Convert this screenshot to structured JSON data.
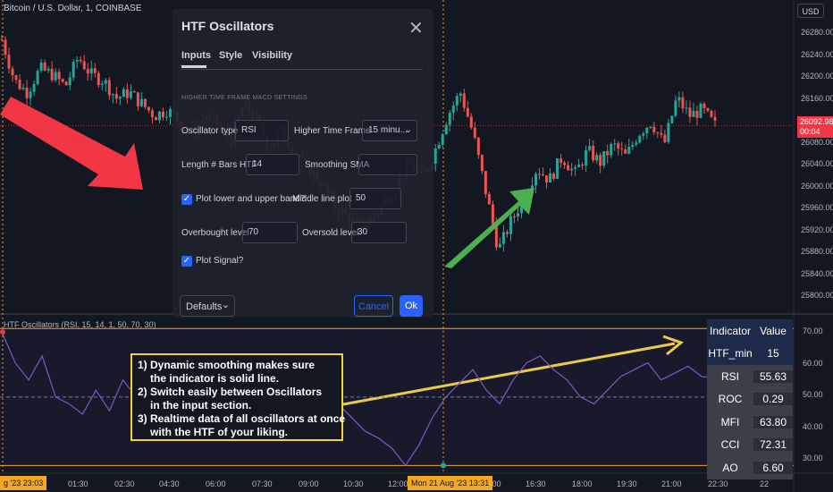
{
  "symbol_title": "Bitcoin / U.S. Dollar, 1, COINBASE",
  "currency_badge": "USD",
  "price_axis": [
    "26280.00",
    "26240.00",
    "26200.00",
    "26160.00",
    "26120.00",
    "26080.00",
    "26040.00",
    "26000.00",
    "25960.00",
    "25920.00",
    "25880.00",
    "25840.00",
    "25800.00"
  ],
  "last_price": {
    "value": "26092.98",
    "countdown": "00:04"
  },
  "osc_axis": [
    "70.00",
    "60.00",
    "50.00",
    "40.00",
    "30.00"
  ],
  "osc_title": "HTF Oscillators (RSI, 15, 14, 1, 50, 70, 30)",
  "time_axis": [
    "01:30",
    "02:30",
    "04:30",
    "06:00",
    "07:30",
    "09:00",
    "10:30",
    "12:00",
    "15:00",
    "16:30",
    "18:00",
    "19:30",
    "21:00",
    "22:30",
    "22"
  ],
  "time_highlight_left": "g '23  23:03",
  "time_highlight_center": "Mon 21 Aug '23  13:31",
  "colors": {
    "up": "#26a69a",
    "down": "#ef5350",
    "accent": "#2962ff",
    "osc_line": "#7e57c2",
    "level_line": "#f5a623",
    "arrow_red": "#f23645",
    "arrow_green": "#4caf50",
    "arrow_yellow": "#f5d142"
  },
  "dialog": {
    "title": "HTF Oscillators",
    "tabs": [
      "Inputs",
      "Style",
      "Visibility"
    ],
    "section": "HIGHER TIME FRAME MACD SETTINGS",
    "oscillator_type_label": "Oscillator type",
    "oscillator_type_value": "RSI",
    "higher_tf_label": "Higher Time Frame",
    "higher_tf_value": "15 minu...",
    "length_label": "Length # Bars HTF",
    "length_value": "14",
    "smoothing_label": "Smoothing SMA",
    "plot_band_label": "Plot lower and upper band?",
    "middle_line_label": "Middle line plot",
    "middle_line_value": "50",
    "overbought_label": "Overbought level",
    "overbought_value": "70",
    "oversold_label": "Oversold level",
    "oversold_value": "30",
    "plot_signal_label": "Plot Signal?",
    "defaults_label": "Defaults",
    "cancel_label": "Cancel",
    "ok_label": "Ok"
  },
  "note": {
    "line1": "1) Dynamic smoothing makes sure",
    "line2": "the indicator is solid line.",
    "line3": "2) Switch easily between Oscillators",
    "line4": "in the input section.",
    "line5": "3) Realtime data of all oscillators at once",
    "line6": "with the HTF of your liking."
  },
  "table": {
    "header": [
      "Indicator",
      "Value"
    ],
    "rows": [
      {
        "name": "HTF_min",
        "value": "15"
      },
      {
        "name": "RSI",
        "value": "55.63"
      },
      {
        "name": "ROC",
        "value": "0.29"
      },
      {
        "name": "MFI",
        "value": "63.80"
      },
      {
        "name": "CCI",
        "value": "72.31"
      },
      {
        "name": "AO",
        "value": "6.60"
      }
    ]
  },
  "chart_data": [
    {
      "type": "candlestick",
      "title": "Bitcoin / U.S. Dollar, 1, COINBASE",
      "ylim": [
        25780,
        26300
      ],
      "close_path": [
        26240,
        26170,
        26150,
        26190,
        26180,
        26160,
        26210,
        26180,
        26170,
        26140,
        26150,
        26130,
        26110,
        26120,
        26100,
        26080,
        26110,
        26090,
        26070,
        26130,
        26100,
        26060,
        26080,
        26050,
        26020,
        26000,
        25960,
        25940,
        25920,
        25930,
        25960,
        25990,
        26030,
        26000,
        26050,
        26110,
        26150,
        26080,
        25980,
        25880,
        25930,
        25970,
        26020,
        26000,
        26040,
        26010,
        26050,
        26030,
        26060,
        26040,
        26080,
        26100,
        26060,
        26140,
        26110,
        26120,
        26092.98
      ],
      "last_price": 26092.98
    },
    {
      "type": "line",
      "title": "HTF Oscillators (RSI, 15, 14, 1, 50, 70, 30)",
      "ylim": [
        28,
        74
      ],
      "levels": [
        70,
        50,
        30
      ],
      "values": [
        69,
        60,
        55,
        62,
        50,
        48,
        45,
        52,
        46,
        55,
        50,
        48,
        42,
        46,
        50,
        44,
        40,
        45,
        48,
        43,
        38,
        42,
        46,
        50,
        52,
        48,
        44,
        40,
        38,
        35,
        30,
        36,
        44,
        50,
        54,
        58,
        52,
        48,
        55,
        60,
        62,
        58,
        55,
        50,
        48,
        52,
        56,
        58,
        60,
        55,
        57,
        59,
        56,
        55.63
      ]
    }
  ]
}
